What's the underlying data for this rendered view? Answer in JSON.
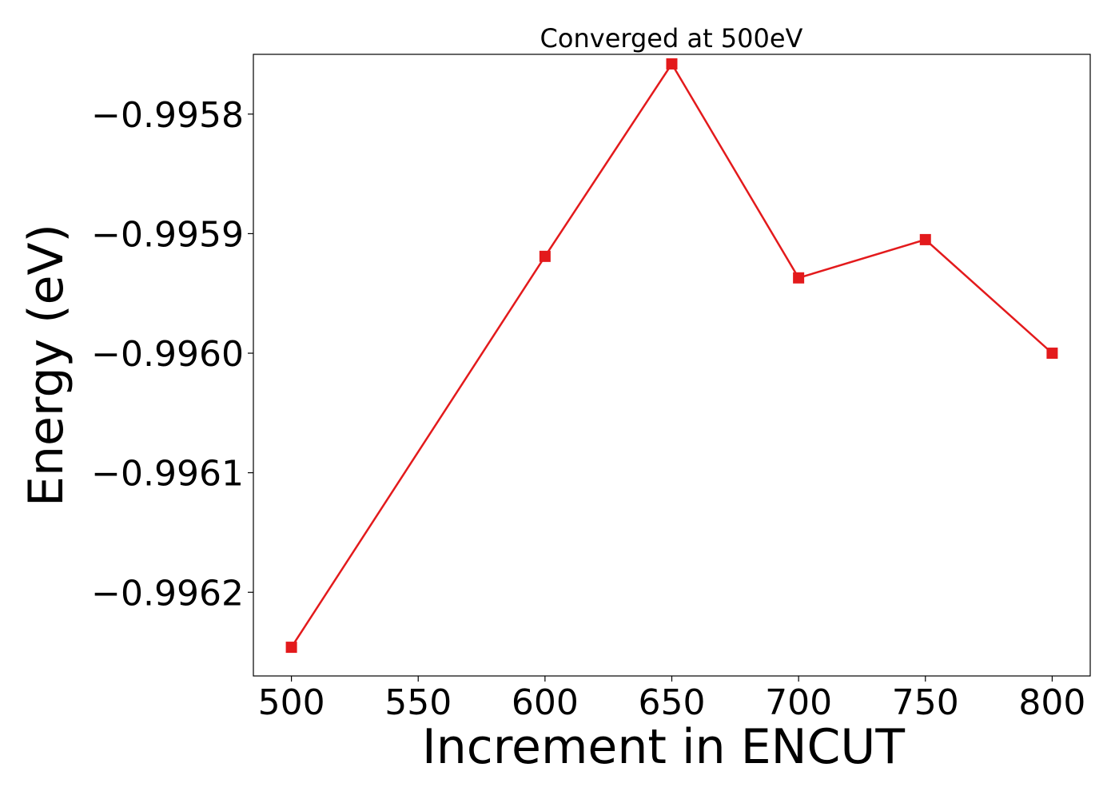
{
  "chart_data": {
    "type": "line",
    "title": "Converged at 500eV",
    "xlabel": "Increment in ENCUT",
    "ylabel": "Energy (eV)",
    "x": [
      500,
      600,
      650,
      700,
      750,
      800
    ],
    "y": [
      -0.996246,
      -0.995919,
      -0.995758,
      -0.995937,
      -0.995905,
      -0.996
    ],
    "xlim": [
      485,
      815
    ],
    "ylim": [
      -0.99627,
      -0.99575
    ],
    "x_ticks": [
      500,
      550,
      600,
      650,
      700,
      750,
      800
    ],
    "x_tick_labels": [
      "500",
      "550",
      "600",
      "650",
      "700",
      "750",
      "800"
    ],
    "y_ticks": [
      -0.9958,
      -0.9959,
      -0.996,
      -0.9961,
      -0.9962
    ],
    "y_tick_labels": [
      "−0.9958",
      "−0.9959",
      "−0.9960",
      "−0.9961",
      "−0.9962"
    ],
    "series_color": "#e31a1c",
    "marker": "square",
    "grid": false,
    "legend": "none"
  }
}
